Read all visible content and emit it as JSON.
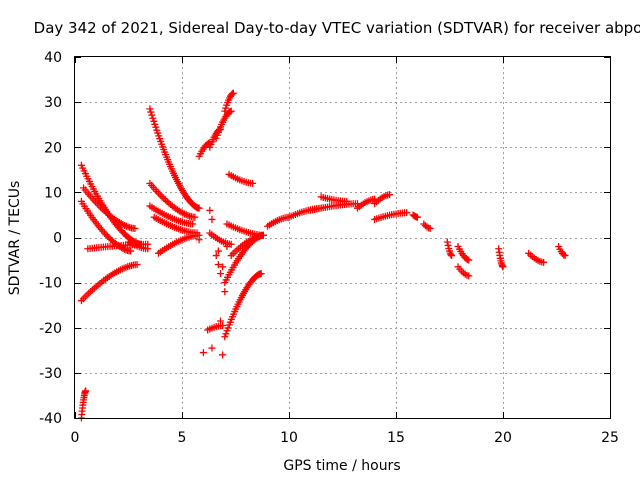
{
  "chart_data": {
    "type": "scatter",
    "title": "Day 342 of 2021, Sidereal Day-to-day VTEC variation (SDTVAR) for receiver abpo",
    "xlabel": "GPS time / hours",
    "ylabel": "SDTVAR / TECUs",
    "xlim": [
      0,
      25
    ],
    "ylim": [
      -40,
      40
    ],
    "xticks": [
      0,
      5,
      10,
      15,
      20,
      25
    ],
    "yticks": [
      -40,
      -30,
      -20,
      -10,
      0,
      10,
      20,
      30,
      40
    ],
    "grid": true,
    "marker": "+",
    "color": "#ff0000",
    "arcs": [
      {
        "x0": 0.3,
        "x1": 0.5,
        "y0": -40,
        "y1": -34
      },
      {
        "x0": 0.3,
        "x1": 2.9,
        "y0": -14,
        "y1": -6
      },
      {
        "x0": 0.3,
        "x1": 3.1,
        "y0": 16,
        "y1": -1.5
      },
      {
        "x0": 0.4,
        "x1": 2.8,
        "y0": 11,
        "y1": 2
      },
      {
        "x0": 0.3,
        "x1": 2.6,
        "y0": 8,
        "y1": -3
      },
      {
        "x0": 0.6,
        "x1": 3.4,
        "y0": -2.5,
        "y1": -1.5
      },
      {
        "x0": 2.5,
        "x1": 3.4,
        "y0": -1,
        "y1": -2.5
      },
      {
        "x0": 3.5,
        "x1": 5.8,
        "y0": 28.5,
        "y1": 6.5
      },
      {
        "x0": 3.5,
        "x1": 5.6,
        "y0": 12,
        "y1": 4.5
      },
      {
        "x0": 3.5,
        "x1": 5.5,
        "y0": 7,
        "y1": 3
      },
      {
        "x0": 3.7,
        "x1": 5.7,
        "y0": 4.5,
        "y1": 1
      },
      {
        "x0": 3.9,
        "x1": 5.8,
        "y0": -3.5,
        "y1": 0.5
      },
      {
        "x0": 6.3,
        "x1": 6.8,
        "y0": 20,
        "y1": 24
      },
      {
        "x0": 5.8,
        "x1": 6.3,
        "y0": 18,
        "y1": 21
      },
      {
        "x0": 7.0,
        "x1": 7.4,
        "y0": 28,
        "y1": 32
      },
      {
        "x0": 6.6,
        "x1": 7.3,
        "y0": 22,
        "y1": 28
      },
      {
        "x0": 7.2,
        "x1": 8.3,
        "y0": 14,
        "y1": 12
      },
      {
        "x0": 7.1,
        "x1": 8.8,
        "y0": 3,
        "y1": 0.5
      },
      {
        "x0": 6.2,
        "x1": 6.9,
        "y0": -20.5,
        "y1": -19.5
      },
      {
        "x0": 7.0,
        "x1": 8.7,
        "y0": -22,
        "y1": -8
      },
      {
        "x0": 7.0,
        "x1": 8.8,
        "y0": -10,
        "y1": 0.5
      },
      {
        "x0": 7.3,
        "x1": 8.8,
        "y0": -4,
        "y1": 0.5
      },
      {
        "x0": 6.3,
        "x1": 7.3,
        "y0": 1,
        "y1": -1.5
      },
      {
        "x0": 9.0,
        "x1": 10.0,
        "y0": 2.5,
        "y1": 4.5
      },
      {
        "x0": 10.0,
        "x1": 11.5,
        "y0": 4.5,
        "y1": 6.5
      },
      {
        "x0": 11.0,
        "x1": 13.2,
        "y0": 6,
        "y1": 7.5
      },
      {
        "x0": 11.5,
        "x1": 12.7,
        "y0": 9,
        "y1": 8
      },
      {
        "x0": 13.2,
        "x1": 14.0,
        "y0": 6.5,
        "y1": 8.5
      },
      {
        "x0": 14.0,
        "x1": 15.5,
        "y0": 4,
        "y1": 5.5
      },
      {
        "x0": 14.0,
        "x1": 14.7,
        "y0": 7.5,
        "y1": 9.5
      },
      {
        "x0": 15.8,
        "x1": 16.0,
        "y0": 5,
        "y1": 4.5
      },
      {
        "x0": 16.3,
        "x1": 16.6,
        "y0": 3,
        "y1": 2
      },
      {
        "x0": 17.4,
        "x1": 17.6,
        "y0": -1,
        "y1": -4
      },
      {
        "x0": 17.9,
        "x1": 18.4,
        "y0": -2,
        "y1": -5
      },
      {
        "x0": 17.9,
        "x1": 18.4,
        "y0": -6.5,
        "y1": -8.5
      },
      {
        "x0": 19.8,
        "x1": 20.0,
        "y0": -2.5,
        "y1": -6.5
      },
      {
        "x0": 21.2,
        "x1": 21.9,
        "y0": -3.5,
        "y1": -5.5
      },
      {
        "x0": 22.6,
        "x1": 22.9,
        "y0": -2,
        "y1": -4
      }
    ],
    "isolated_points": [
      [
        6.0,
        -25.5
      ],
      [
        6.4,
        -24.5
      ],
      [
        6.9,
        -26
      ],
      [
        6.8,
        -18.5
      ],
      [
        6.7,
        -6
      ],
      [
        6.9,
        -6.5
      ],
      [
        6.8,
        -8
      ],
      [
        6.6,
        -4
      ],
      [
        6.4,
        4
      ],
      [
        6.3,
        6
      ],
      [
        5.8,
        -0.5
      ],
      [
        7.0,
        -12
      ],
      [
        6.7,
        -3
      ],
      [
        7.1,
        -2
      ]
    ]
  }
}
